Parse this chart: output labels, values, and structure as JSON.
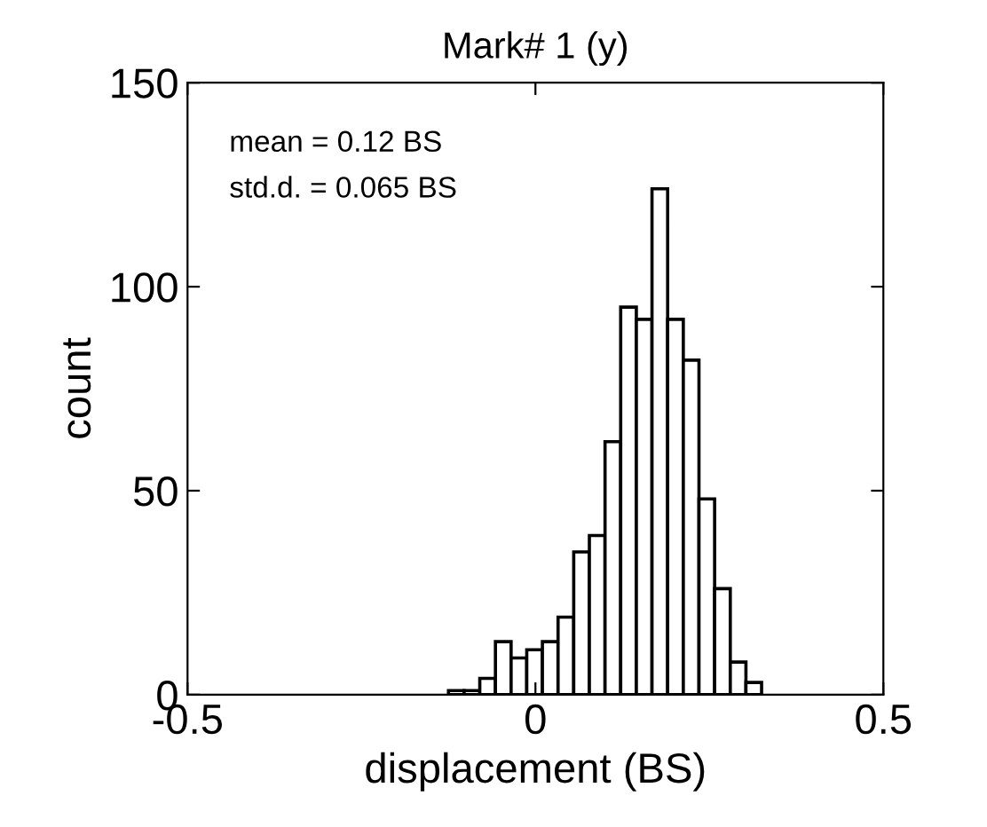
{
  "chart_data": {
    "type": "histogram",
    "title": "Mark# 1 (y)",
    "xlabel": "displacement (BS)",
    "ylabel": "count",
    "bins": [
      -0.125,
      -0.1025,
      -0.08,
      -0.0575,
      -0.035,
      -0.0125,
      0.01,
      0.0325,
      0.055,
      0.0775,
      0.1,
      0.1225,
      0.145,
      0.1675,
      0.19,
      0.2125,
      0.235,
      0.2575,
      0.28,
      0.3025,
      0.325
    ],
    "values": [
      1,
      1,
      4,
      13,
      9,
      11,
      13,
      19,
      35,
      39,
      62,
      95,
      92,
      124,
      92,
      82,
      48,
      26,
      8,
      3
    ],
    "color": "#ffffff",
    "xlim": [
      -0.5,
      0.5
    ],
    "xticks": [
      -0.5,
      0,
      0.5
    ],
    "ylim": [
      0,
      150
    ],
    "yticks": [
      0,
      50,
      100,
      150
    ],
    "grid": false,
    "annotations": [
      "mean = 0.12 BS",
      "std.d. = 0.065 BS"
    ]
  }
}
